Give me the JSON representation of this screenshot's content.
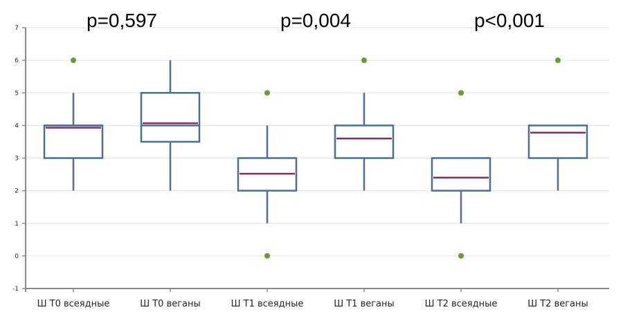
{
  "chart_data": {
    "type": "boxplot",
    "title": "",
    "xlabel": "",
    "ylabel": "",
    "ylim": [
      -1,
      7
    ],
    "yticks": [
      -1,
      0,
      1,
      2,
      3,
      4,
      5,
      6,
      7
    ],
    "grid": true,
    "categories": [
      "Ш Т0 всеядные",
      "Ш Т0 веганы",
      "Ш Т1 всеядные",
      "Ш Т1 веганы",
      "Ш Т2 всеядные",
      "Ш Т2 веганы"
    ],
    "boxes": [
      {
        "min": 2,
        "q1": 3,
        "median": 4,
        "q3": 4,
        "max": 5,
        "mean": 3.93,
        "outliers": [
          6
        ]
      },
      {
        "min": 2,
        "q1": 3.5,
        "median": 4,
        "q3": 5,
        "max": 6,
        "mean": 4.07,
        "outliers": []
      },
      {
        "min": 1,
        "q1": 2,
        "median": null,
        "q3": 3,
        "max": 4,
        "mean": 2.52,
        "outliers": [
          5,
          0
        ]
      },
      {
        "min": 2,
        "q1": 3,
        "median": null,
        "q3": 4,
        "max": 5,
        "mean": 3.6,
        "outliers": [
          6
        ]
      },
      {
        "min": 1,
        "q1": 2,
        "median": null,
        "q3": 3,
        "max": 3,
        "mean": 2.4,
        "outliers": [
          5,
          0
        ]
      },
      {
        "min": 2,
        "q1": 3,
        "median": null,
        "q3": 4,
        "max": 4,
        "mean": 3.78,
        "outliers": [
          6
        ]
      }
    ],
    "annotations": [
      {
        "text": "p=0,597",
        "between": [
          0,
          1
        ]
      },
      {
        "text": "p=0,004",
        "between": [
          2,
          3
        ]
      },
      {
        "text": "p<0,001",
        "between": [
          4,
          5
        ]
      }
    ],
    "colors": {
      "box": "#4a6f96",
      "mean_line": "#8b2c5e",
      "outlier": "#6a9a3a",
      "grid": "#e2e2e2",
      "axis": "#888888"
    }
  }
}
